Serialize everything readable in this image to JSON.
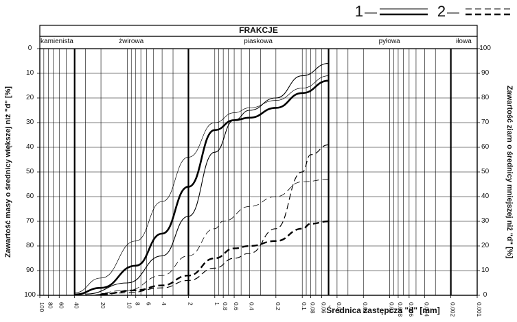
{
  "chart_data": {
    "type": "line",
    "orientation": "rotated 180 degrees (scanned upside-down)",
    "x_axis_label": "Średnica zastępcza \"d\" [mm]",
    "x_scale": "log",
    "x_range_mm": [
      0.001,
      100
    ],
    "x_ticks": [
      "0.001",
      "0.002",
      "0.004",
      "0.006",
      "0.008",
      "0.01",
      "0.02",
      "0.04",
      "0.06",
      "0.08",
      "0.1",
      "0.2",
      "0.4",
      "0.6",
      "0.8",
      "1",
      "2",
      "4",
      "6",
      "8",
      "10",
      "20",
      "40",
      "60",
      "80",
      "100"
    ],
    "left_axis_label": "Zawartość ziarn o średnicy mniejszej niż \"d\" [%]",
    "left_ticks": [
      "0",
      "10",
      "20",
      "30",
      "40",
      "50",
      "60",
      "70",
      "80",
      "90",
      "100"
    ],
    "right_axis_label": "Zawartość masy o średnicy większej niż \"d\" [%]",
    "right_ticks": [
      "100",
      "90",
      "80",
      "70",
      "60",
      "50",
      "40",
      "30",
      "20",
      "10",
      "0"
    ],
    "grid": true,
    "legend": [
      {
        "id": "1",
        "label": "1",
        "style": "solid"
      },
      {
        "id": "2",
        "label": "2",
        "style": "dashed"
      }
    ],
    "fractions_title": "FRAKCJE",
    "fractions": [
      {
        "label": "iłowa",
        "from": 0.001,
        "to": 0.002
      },
      {
        "label": "pyłowa",
        "from": 0.002,
        "to": 0.05
      },
      {
        "label": "piaskowa",
        "from": 0.05,
        "to": 2
      },
      {
        "label": "żwirowa",
        "from": 2,
        "to": 40
      },
      {
        "label": "kamienista",
        "from": 40,
        "to": 100
      }
    ],
    "series": [
      {
        "group": "1",
        "style": "solid",
        "width": 2.6,
        "points": [
          [
            0.05,
            87
          ],
          [
            0.1,
            82
          ],
          [
            0.2,
            76
          ],
          [
            0.4,
            72
          ],
          [
            0.6,
            71
          ],
          [
            1,
            67
          ],
          [
            2,
            44
          ],
          [
            4,
            25
          ],
          [
            8,
            12
          ],
          [
            20,
            3
          ],
          [
            40,
            0.3
          ]
        ]
      },
      {
        "group": "1",
        "style": "solid",
        "width": 1.1,
        "points": [
          [
            0.05,
            94
          ],
          [
            0.1,
            89
          ],
          [
            0.2,
            80
          ],
          [
            0.4,
            75
          ],
          [
            0.6,
            71
          ],
          [
            1,
            58
          ],
          [
            2,
            32
          ],
          [
            4,
            16
          ],
          [
            10,
            5
          ],
          [
            30,
            0.5
          ]
        ]
      },
      {
        "group": "1",
        "style": "solid",
        "width": 0.7,
        "points": [
          [
            0.05,
            89
          ],
          [
            0.1,
            84
          ],
          [
            0.2,
            79
          ],
          [
            0.4,
            76
          ],
          [
            0.6,
            74
          ],
          [
            1,
            70
          ],
          [
            2,
            56
          ],
          [
            4,
            38
          ],
          [
            8,
            22
          ],
          [
            20,
            7
          ],
          [
            40,
            1
          ]
        ]
      },
      {
        "group": "2",
        "style": "dashed",
        "width": 1.2,
        "points": [
          [
            0.05,
            61
          ],
          [
            0.08,
            57
          ],
          [
            0.1,
            50
          ],
          [
            0.2,
            27
          ],
          [
            0.4,
            17
          ],
          [
            0.6,
            15
          ],
          [
            1,
            11
          ],
          [
            2,
            6
          ],
          [
            4,
            3
          ],
          [
            10,
            1
          ],
          [
            30,
            0
          ]
        ]
      },
      {
        "group": "2",
        "style": "dashed",
        "width": 2.4,
        "points": [
          [
            0.05,
            30
          ],
          [
            0.08,
            29
          ],
          [
            0.1,
            27
          ],
          [
            0.2,
            22
          ],
          [
            0.4,
            20
          ],
          [
            0.6,
            19
          ],
          [
            1,
            15
          ],
          [
            2,
            8
          ],
          [
            4,
            4
          ],
          [
            8,
            2
          ],
          [
            20,
            0.5
          ]
        ]
      },
      {
        "group": "2",
        "style": "dashed",
        "width": 0.8,
        "points": [
          [
            0.05,
            47
          ],
          [
            0.1,
            46
          ],
          [
            0.2,
            40
          ],
          [
            0.4,
            36
          ],
          [
            0.8,
            30
          ],
          [
            1,
            27
          ],
          [
            2,
            16
          ],
          [
            4,
            8
          ],
          [
            10,
            2
          ],
          [
            30,
            0
          ]
        ]
      }
    ]
  }
}
